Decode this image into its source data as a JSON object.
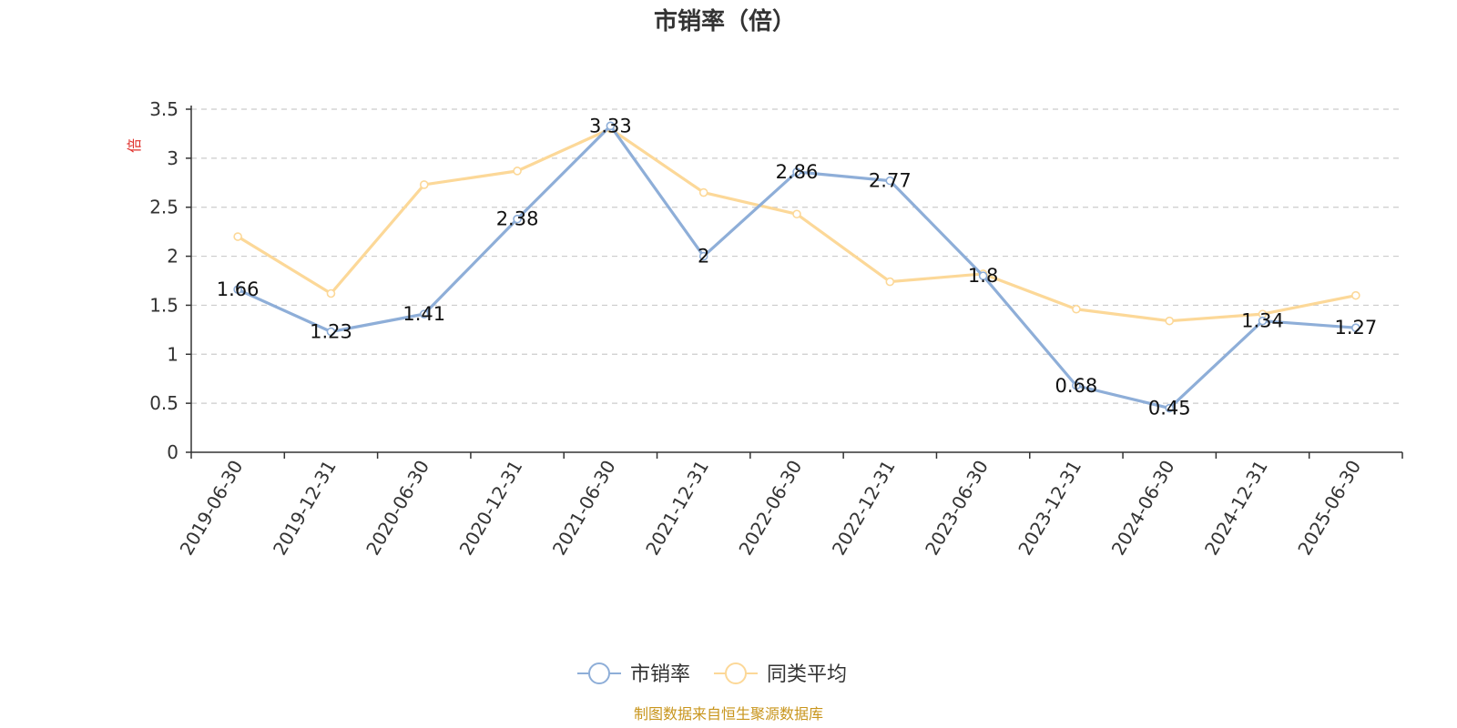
{
  "chart_data": {
    "type": "line",
    "title": "市销率（倍）",
    "ylabel": "倍",
    "xlabel": "",
    "ylim": [
      0,
      3.5
    ],
    "yticks": [
      "0",
      "0.5",
      "1",
      "1.5",
      "2",
      "2.5",
      "3",
      "3.5"
    ],
    "categories": [
      "2019-06-30",
      "2019-12-31",
      "2020-06-30",
      "2020-12-31",
      "2021-06-30",
      "2021-12-31",
      "2022-06-30",
      "2022-12-31",
      "2023-06-30",
      "2023-12-31",
      "2024-06-30",
      "2024-12-31",
      "2025-06-30"
    ],
    "series": [
      {
        "name": "市销率",
        "color": "#8eaed8",
        "values": [
          1.66,
          1.23,
          1.41,
          2.38,
          3.33,
          2,
          2.86,
          2.77,
          1.8,
          0.68,
          0.45,
          1.34,
          1.27
        ],
        "labels": [
          "1.66",
          "1.23",
          "1.41",
          "2.38",
          "3.33",
          "2",
          "2.86",
          "2.77",
          "1.8",
          "0.68",
          "0.45",
          "1.34",
          "1.27"
        ]
      },
      {
        "name": "同类平均",
        "color": "#fcd898",
        "values": [
          2.2,
          1.62,
          2.73,
          2.87,
          3.3,
          2.65,
          2.43,
          1.74,
          1.82,
          1.46,
          1.34,
          1.41,
          1.6
        ]
      }
    ],
    "grid": true,
    "legend_position": "bottom-center"
  },
  "colors": {
    "unit_label": "#e0312c",
    "source": "#c8951c",
    "axis": "#333333",
    "grid": "#cccccc"
  },
  "source_text": "制图数据来自恒生聚源数据库"
}
